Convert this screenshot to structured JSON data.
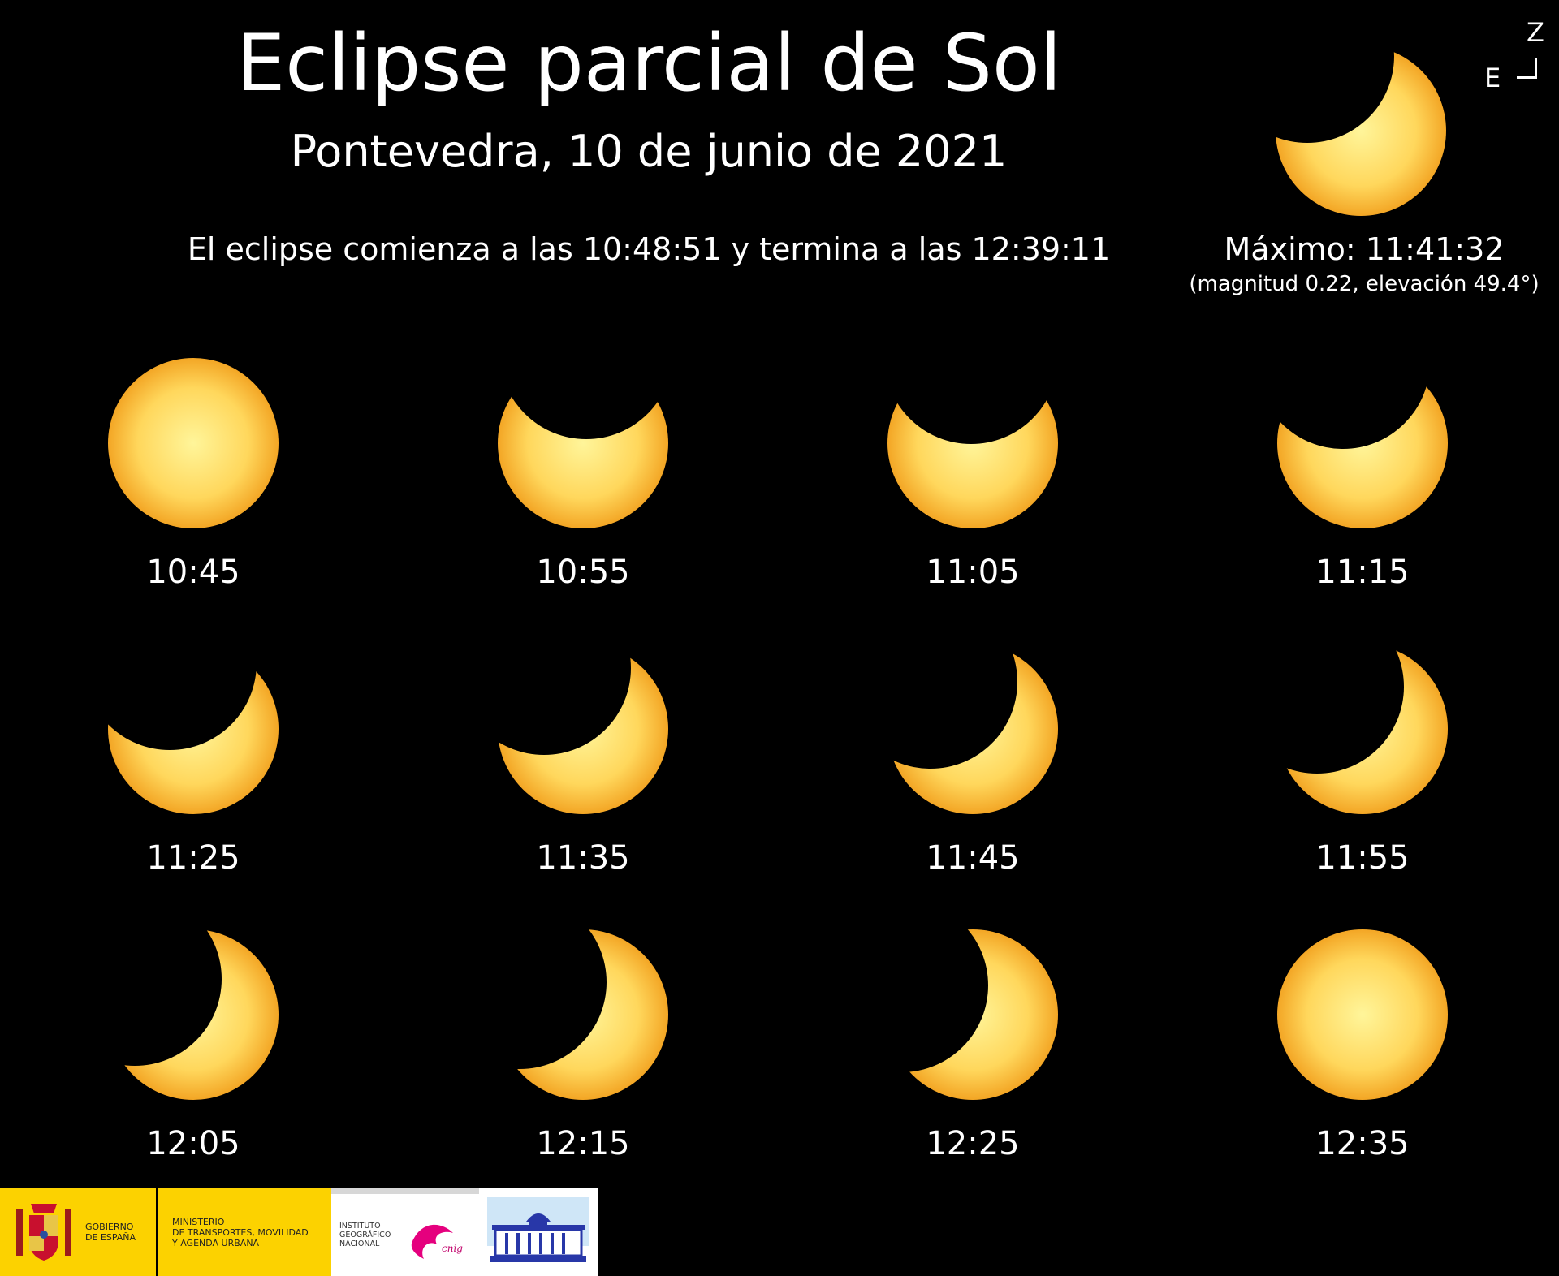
{
  "header": {
    "title": "Eclipse parcial de Sol",
    "subtitle": "Pontevedra, 10 de junio de 2021",
    "range_text": "El eclipse comienza a las 10:48:51 y termina a las 12:39:11"
  },
  "maximum": {
    "label": "Máximo: 11:41:32",
    "detail": "(magnitud 0.22, elevación 49.4°)"
  },
  "compass": {
    "zenith": "Z",
    "east": "E"
  },
  "colors": {
    "background": "#000000",
    "sun_center": "#fff59a",
    "sun_mid": "#ffd75c",
    "sun_edge": "#f3a625",
    "text": "#ffffff"
  },
  "phases": [
    {
      "time": "10:45"
    },
    {
      "time": "10:55"
    },
    {
      "time": "11:05"
    },
    {
      "time": "11:15"
    },
    {
      "time": "11:25"
    },
    {
      "time": "11:35"
    },
    {
      "time": "11:45"
    },
    {
      "time": "11:55"
    },
    {
      "time": "12:05"
    },
    {
      "time": "12:15"
    },
    {
      "time": "12:25"
    },
    {
      "time": "12:35"
    }
  ],
  "logos": {
    "gobierno": "GOBIERNO\nDE ESPAÑA",
    "ministerio": "MINISTERIO\nDE TRANSPORTES, MOVILIDAD\nY AGENDA URBANA",
    "ign": "INSTITUTO\nGEOGRÁFICO\nNACIONAL",
    "cnig": "cnig"
  }
}
